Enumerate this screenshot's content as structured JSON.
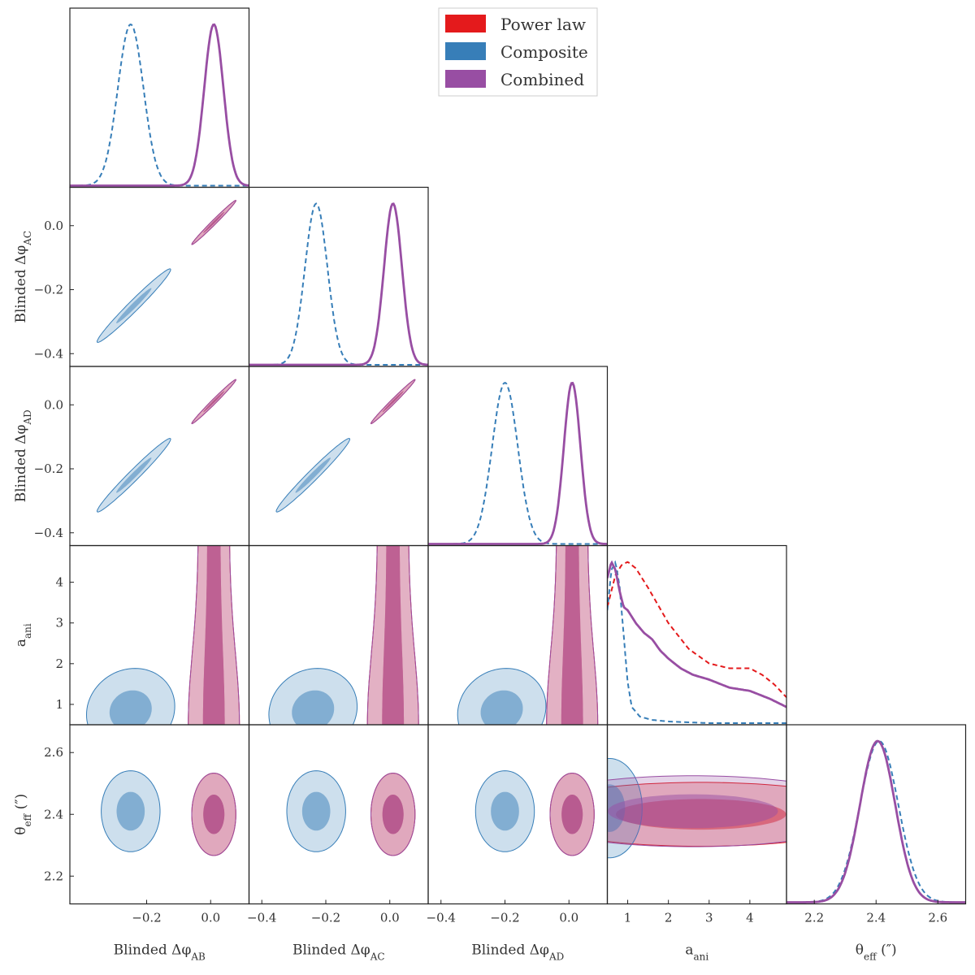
{
  "chart_data": {
    "type": "corner",
    "title": "",
    "legend": {
      "placement": "top-center",
      "entries": [
        {
          "label": "Power law",
          "color": "#e41a1c"
        },
        {
          "label": "Composite",
          "color": "#377eb8"
        },
        {
          "label": "Combined",
          "color": "#984ea3"
        }
      ]
    },
    "parameters": [
      {
        "key": "phiAB",
        "label": "Blinded Δφ_AB",
        "label_main": "Blinded Δφ",
        "label_sub": "AB",
        "range": [
          -0.44,
          0.12
        ],
        "ticks": [
          -0.2,
          0.0
        ],
        "tick_labels": [
          "−0.2",
          "0.0"
        ]
      },
      {
        "key": "phiAC",
        "label": "Blinded Δφ_AC",
        "label_main": "Blinded Δφ",
        "label_sub": "AC",
        "range": [
          -0.44,
          0.12
        ],
        "ticks": [
          -0.4,
          -0.2,
          0.0
        ],
        "tick_labels": [
          "−0.4",
          "−0.2",
          "0.0"
        ]
      },
      {
        "key": "phiAD",
        "label": "Blinded Δφ_AD",
        "label_main": "Blinded Δφ",
        "label_sub": "AD",
        "range": [
          -0.44,
          0.12
        ],
        "ticks": [
          -0.4,
          -0.2,
          0.0
        ],
        "tick_labels": [
          "−0.4",
          "−0.2",
          "0.0"
        ]
      },
      {
        "key": "aani",
        "label": "a_ani",
        "label_main": "a",
        "label_sub": "ani",
        "range": [
          0.5,
          4.9
        ],
        "ticks": [
          1,
          2,
          3,
          4
        ],
        "tick_labels": [
          "1",
          "2",
          "3",
          "4"
        ]
      },
      {
        "key": "theta",
        "label": "θ_eff (″)",
        "label_main": "θ",
        "label_sub": "eff",
        "label_suffix": " (″)",
        "range": [
          2.11,
          2.69
        ],
        "ticks": [
          2.2,
          2.4,
          2.6
        ],
        "tick_labels": [
          "2.2",
          "2.4",
          "2.6"
        ]
      }
    ],
    "series": [
      {
        "name": "Power law",
        "color": "#e41a1c",
        "marginals": {
          "phiAB": {
            "shape": "gaussian",
            "mean": 0.01,
            "sd": 0.03
          },
          "phiAC": {
            "shape": "gaussian",
            "mean": 0.01,
            "sd": 0.028
          },
          "phiAD": {
            "shape": "gaussian",
            "mean": 0.01,
            "sd": 0.026
          },
          "aani": {
            "shape": "curve",
            "x": [
              0.5,
              0.7,
              0.85,
              1.0,
              1.2,
              1.5,
              2.0,
              2.5,
              3.0,
              3.5,
              4.0,
              4.3,
              4.6,
              4.9
            ],
            "y": [
              0.72,
              0.92,
              0.98,
              1.0,
              0.96,
              0.84,
              0.62,
              0.46,
              0.37,
              0.34,
              0.34,
              0.3,
              0.24,
              0.16
            ]
          },
          "theta": {
            "shape": "gaussian",
            "mean": 2.405,
            "sd": 0.057
          }
        },
        "contours_2d": {
          "phiAB|phiAC": {
            "mean": [
              0.01,
              0.01
            ],
            "sd": [
              0.03,
              0.03
            ],
            "corr": 0.99
          },
          "phiAB|phiAD": {
            "mean": [
              0.01,
              0.01
            ],
            "sd": [
              0.03,
              0.03
            ],
            "corr": 0.99
          },
          "phiAC|phiAD": {
            "mean": [
              0.01,
              0.01
            ],
            "sd": [
              0.03,
              0.03
            ],
            "corr": 0.99
          },
          "phiAB|theta": {
            "mean": [
              0.01,
              2.4
            ],
            "sd": [
              0.03,
              0.058
            ],
            "corr": 0.0
          },
          "phiAC|theta": {
            "mean": [
              0.01,
              2.4
            ],
            "sd": [
              0.03,
              0.058
            ],
            "corr": 0.0
          },
          "phiAD|theta": {
            "mean": [
              0.01,
              2.4
            ],
            "sd": [
              0.03,
              0.058
            ],
            "corr": 0.0
          },
          "aani|theta": {
            "mean": [
              2.8,
              2.4
            ],
            "sd": [
              1.9,
              0.045
            ],
            "corr": 0.0
          }
        },
        "bands_2d": {
          "phiAB|aani": {
            "x_center": 0.01,
            "width_1sigma": 0.034,
            "width_2sigma": 0.08
          },
          "phiAC|aani": {
            "x_center": 0.01,
            "width_1sigma": 0.034,
            "width_2sigma": 0.08
          },
          "phiAD|aani": {
            "x_center": 0.01,
            "width_1sigma": 0.034,
            "width_2sigma": 0.08
          }
        }
      },
      {
        "name": "Composite",
        "color": "#377eb8",
        "marginals": {
          "phiAB": {
            "shape": "gaussian",
            "mean": -0.25,
            "sd": 0.04
          },
          "phiAC": {
            "shape": "gaussian",
            "mean": -0.23,
            "sd": 0.035
          },
          "phiAD": {
            "shape": "gaussian",
            "mean": -0.2,
            "sd": 0.04
          },
          "aani": {
            "shape": "curve",
            "x": [
              0.5,
              0.6,
              0.7,
              0.8,
              0.9,
              1.0,
              1.1,
              1.3,
              1.6,
              2.0,
              3.0,
              4.9
            ],
            "y": [
              0.7,
              0.95,
              1.0,
              0.85,
              0.55,
              0.25,
              0.1,
              0.04,
              0.02,
              0.01,
              0.0,
              0.0
            ]
          },
          "theta": {
            "shape": "gaussian",
            "mean": 2.41,
            "sd": 0.062
          }
        },
        "contours_2d": {
          "phiAB|phiAC": {
            "mean": [
              -0.24,
              -0.25
            ],
            "sd": [
              0.05,
              0.05
            ],
            "corr": 0.98
          },
          "phiAB|phiAD": {
            "mean": [
              -0.24,
              -0.22
            ],
            "sd": [
              0.05,
              0.05
            ],
            "corr": 0.98
          },
          "phiAC|phiAD": {
            "mean": [
              -0.24,
              -0.22
            ],
            "sd": [
              0.05,
              0.05
            ],
            "corr": 0.98
          },
          "phiAB|aani": {
            "mean": [
              -0.25,
              0.85
            ],
            "sd": [
              0.06,
              0.45
            ],
            "corr": 0.1
          },
          "phiAC|aani": {
            "mean": [
              -0.24,
              0.85
            ],
            "sd": [
              0.06,
              0.45
            ],
            "corr": 0.1
          },
          "phiAD|aani": {
            "mean": [
              -0.21,
              0.85
            ],
            "sd": [
              0.06,
              0.45
            ],
            "corr": 0.1
          },
          "phiAB|theta": {
            "mean": [
              -0.25,
              2.41
            ],
            "sd": [
              0.04,
              0.057
            ],
            "corr": 0.0
          },
          "phiAC|theta": {
            "mean": [
              -0.23,
              2.41
            ],
            "sd": [
              0.04,
              0.057
            ],
            "corr": 0.0
          },
          "phiAD|theta": {
            "mean": [
              -0.2,
              2.41
            ],
            "sd": [
              0.04,
              0.057
            ],
            "corr": 0.0
          },
          "aani|theta": {
            "mean": [
              0.55,
              2.42
            ],
            "sd": [
              0.35,
              0.07
            ],
            "corr": 0.0
          }
        }
      },
      {
        "name": "Combined",
        "color": "#984ea3",
        "marginals": {
          "phiAB": {
            "shape": "gaussian",
            "mean": 0.01,
            "sd": 0.03
          },
          "phiAC": {
            "shape": "gaussian",
            "mean": 0.01,
            "sd": 0.028
          },
          "phiAD": {
            "shape": "gaussian",
            "mean": 0.01,
            "sd": 0.026
          },
          "aani": {
            "shape": "curve",
            "x": [
              0.5,
              0.6,
              0.7,
              0.8,
              0.9,
              1.0,
              1.2,
              1.4,
              1.6,
              1.8,
              2.0,
              2.3,
              2.6,
              3.0,
              3.5,
              4.0,
              4.5,
              4.9
            ],
            "y": [
              0.9,
              1.0,
              0.95,
              0.82,
              0.72,
              0.7,
              0.62,
              0.56,
              0.52,
              0.45,
              0.4,
              0.34,
              0.3,
              0.27,
              0.22,
              0.2,
              0.15,
              0.1
            ]
          },
          "theta": {
            "shape": "gaussian",
            "mean": 2.405,
            "sd": 0.057
          }
        },
        "contours_2d": {
          "phiAB|phiAC": {
            "mean": [
              0.01,
              0.01
            ],
            "sd": [
              0.03,
              0.03
            ],
            "corr": 0.99
          },
          "phiAB|phiAD": {
            "mean": [
              0.01,
              0.01
            ],
            "sd": [
              0.03,
              0.03
            ],
            "corr": 0.99
          },
          "phiAC|phiAD": {
            "mean": [
              0.01,
              0.01
            ],
            "sd": [
              0.03,
              0.03
            ],
            "corr": 0.99
          },
          "phiAB|theta": {
            "mean": [
              0.01,
              2.4
            ],
            "sd": [
              0.03,
              0.058
            ],
            "corr": 0.0
          },
          "phiAC|theta": {
            "mean": [
              0.01,
              2.4
            ],
            "sd": [
              0.03,
              0.058
            ],
            "corr": 0.0
          },
          "phiAD|theta": {
            "mean": [
              0.01,
              2.4
            ],
            "sd": [
              0.03,
              0.058
            ],
            "corr": 0.0
          },
          "aani|theta": {
            "mean": [
              2.6,
              2.41
            ],
            "sd": [
              1.9,
              0.05
            ],
            "corr": 0.0
          }
        },
        "bands_2d": {
          "phiAB|aani": {
            "x_center": 0.01,
            "width_1sigma": 0.034,
            "width_2sigma": 0.08
          },
          "phiAC|aani": {
            "x_center": 0.01,
            "width_1sigma": 0.034,
            "width_2sigma": 0.08
          },
          "phiAD|aani": {
            "x_center": 0.01,
            "width_1sigma": 0.034,
            "width_2sigma": 0.08
          }
        }
      }
    ],
    "styles": {
      "Power law": {
        "marginal_line": "dashed"
      },
      "Composite": {
        "marginal_line": "dashed"
      },
      "Combined": {
        "marginal_line": "solid"
      }
    }
  }
}
